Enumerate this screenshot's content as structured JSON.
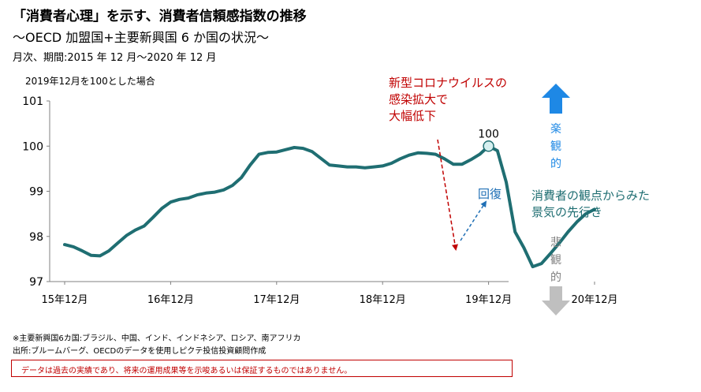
{
  "header": {
    "title": "「消費者心理」を示す、消費者信頼感指数の推移",
    "subtitle": "～OECD 加盟国+主要新興国 6 か国の状況～",
    "period": "月次、期間:2015 年 12 月～2020 年 12 月",
    "base_note": "2019年12月を100とした場合"
  },
  "annotations": {
    "covid_line1": "新型コロナウイルスの",
    "covid_line2": "感染拡大で",
    "covid_line3": "大幅低下",
    "peak_label": "100",
    "recovery": "回復",
    "optimistic_chars": [
      "楽",
      "観",
      "的"
    ],
    "pessimistic_chars": [
      "悲",
      "観",
      "的"
    ],
    "consumer_view_line1": "消費者の観点からみた",
    "consumer_view_line2": "景気の先行き"
  },
  "footer": {
    "note": "※主要新興国6カ国:ブラジル、中国、インド、インドネシア、ロシア、南アフリカ",
    "source": "出所:ブルームバーグ、OECDのデータを使用しピクテ投信投資顧問作成",
    "disclaimer": "データは過去の実績であり、将来の運用成果等を示唆あるいは保証するものではありません。"
  },
  "colors": {
    "line": "#1f6e72",
    "red": "#c00000",
    "blue_arrow": "#1f6fb5",
    "up_arrow": "#1e88e5",
    "down_arrow": "#bfbfbf",
    "peak_marker": "#d6f0f0"
  },
  "chart_data": {
    "type": "line",
    "x_labels": [
      "15年12月",
      "16年12月",
      "17年12月",
      "18年12月",
      "19年12月",
      "20年12月"
    ],
    "x_start": "2015-12",
    "y_ticks": [
      97,
      98,
      99,
      100,
      101
    ],
    "ylim": [
      97,
      101
    ],
    "grid": false,
    "series": [
      {
        "values": [
          97.82,
          97.77,
          97.68,
          97.58,
          97.57,
          97.68,
          97.85,
          98.02,
          98.14,
          98.23,
          98.42,
          98.62,
          98.76,
          98.82,
          98.85,
          98.92,
          98.96,
          98.98,
          99.03,
          99.13,
          99.3,
          99.58,
          99.82,
          99.86,
          99.87,
          99.92,
          99.97,
          99.95,
          99.88,
          99.73,
          99.58,
          99.56,
          99.54,
          99.54,
          99.52,
          99.54,
          99.56,
          99.62,
          99.72,
          99.8,
          99.85,
          99.84,
          99.82,
          99.72,
          99.6,
          99.6,
          99.7,
          99.82,
          100.0,
          99.9,
          99.2,
          98.1,
          97.75,
          97.33,
          97.4,
          97.62,
          97.85,
          98.1,
          98.32,
          98.5,
          98.6
        ]
      }
    ]
  }
}
